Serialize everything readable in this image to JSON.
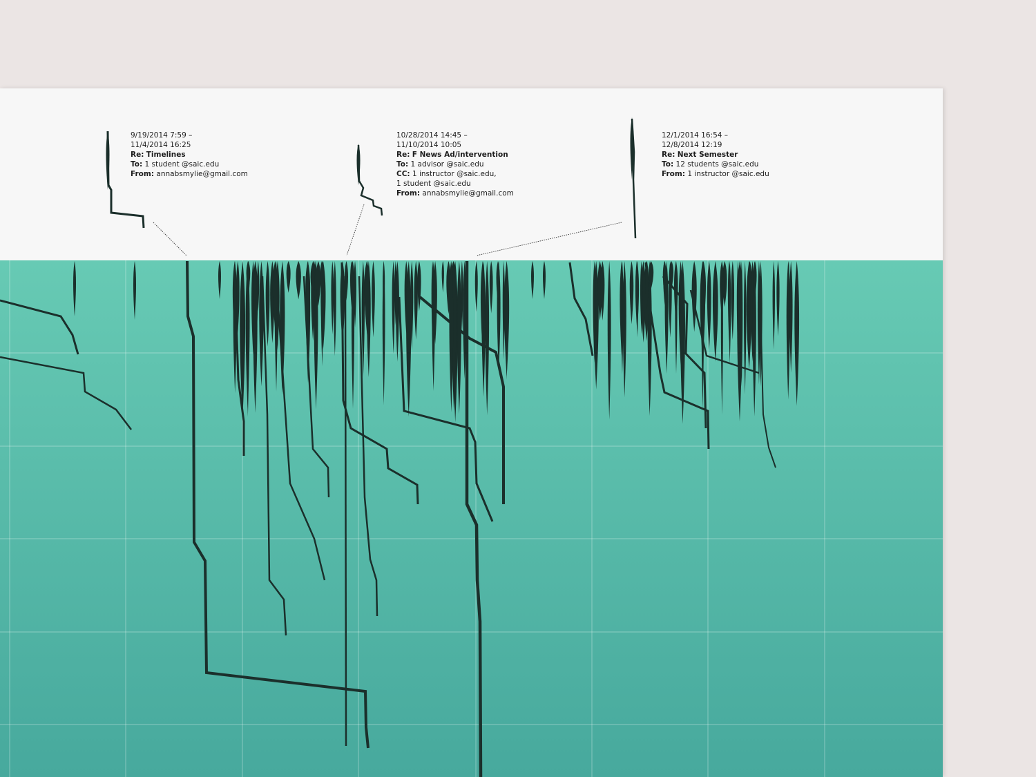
{
  "annotations": [
    {
      "start": "9/19/2014 7:59 –",
      "end": "11/4/2014 16:25",
      "subject_label": "Re:",
      "subject": "Timelines",
      "lines": [
        {
          "label": "To:",
          "value": "1 student @saic.edu"
        },
        {
          "label": "From:",
          "value": "annabsmylie@gmail.com"
        }
      ]
    },
    {
      "start": "10/28/2014 14:45 –",
      "end": "11/10/2014 10:05",
      "subject_label": "Re:",
      "subject": "F News Ad/intervention",
      "lines": [
        {
          "label": "To:",
          "value": "1 advisor @saic.edu"
        },
        {
          "label": "CC:",
          "value": "1 instructor @saic.edu,"
        },
        {
          "label": "",
          "value": "1 student @saic.edu"
        },
        {
          "label": "From:",
          "value": "annabsmylie@gmail.com"
        }
      ]
    },
    {
      "start": "12/1/2014 16:54 –",
      "end": "12/8/2014 12:19",
      "subject_label": "Re:",
      "subject": "Next Semester",
      "lines": [
        {
          "label": "To:",
          "value": "12 students @saic.edu"
        },
        {
          "label": "From:",
          "value": "1 instructor @saic.edu"
        }
      ]
    }
  ],
  "colors": {
    "background": "#ebe5e4",
    "paper": "#f7f7f7",
    "sea_top": "#67cab4",
    "sea_bottom": "#47a99d",
    "thread": "#1b2f2b"
  }
}
